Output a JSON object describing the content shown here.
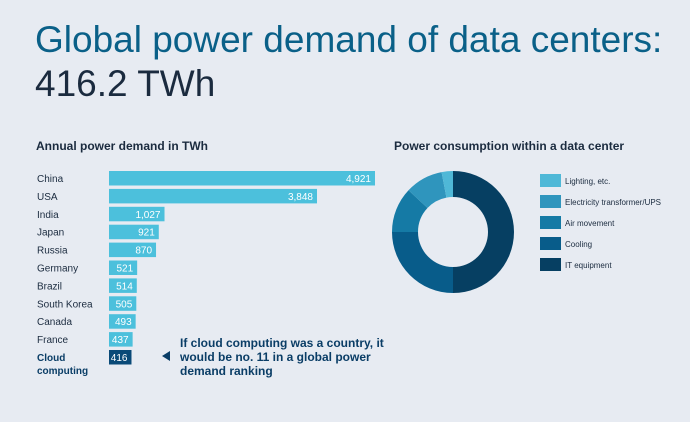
{
  "header": {
    "title": "Global power demand of data centers:",
    "subtitle": "416.2 TWh"
  },
  "annotation": {
    "text": "If cloud computing was a country, it would be no. 11 in a global power demand ranking"
  },
  "colors": {
    "background": "#e7ebf2",
    "bar_country": "#4cc0dc",
    "bar_highlight": "#0a4a78",
    "title": "#0a6088",
    "dark_text": "#1b2b3f"
  },
  "chart_data": [
    {
      "type": "bar",
      "orientation": "horizontal",
      "title": "Annual power demand in TWh",
      "categories": [
        "China",
        "USA",
        "India",
        "Japan",
        "Russia",
        "Germany",
        "Brazil",
        "South Korea",
        "Canada",
        "France",
        "Cloud computing"
      ],
      "values": [
        4921,
        3848,
        1027,
        921,
        870,
        521,
        514,
        505,
        493,
        437,
        416
      ],
      "value_labels": [
        "4,921",
        "3,848",
        "1,027",
        "921",
        "870",
        "521",
        "514",
        "505",
        "493",
        "437",
        "416"
      ],
      "highlight": "Cloud computing",
      "bar_colors": [
        "#4cc0dc",
        "#4cc0dc",
        "#4cc0dc",
        "#4cc0dc",
        "#4cc0dc",
        "#4cc0dc",
        "#4cc0dc",
        "#4cc0dc",
        "#4cc0dc",
        "#4cc0dc",
        "#0a4a78"
      ]
    },
    {
      "type": "pie",
      "variant": "donut",
      "title": "Power consumption within a data center",
      "categories": [
        "Lighting, etc.",
        "Electricity transformer/UPS",
        "Air movement",
        "Cooling",
        "IT equipment"
      ],
      "values": [
        3,
        10,
        12,
        25,
        50
      ],
      "colors": [
        "#4fb8d7",
        "#2f95bd",
        "#157aa5",
        "#085c8a",
        "#063f62"
      ],
      "legend_position": "right"
    }
  ]
}
